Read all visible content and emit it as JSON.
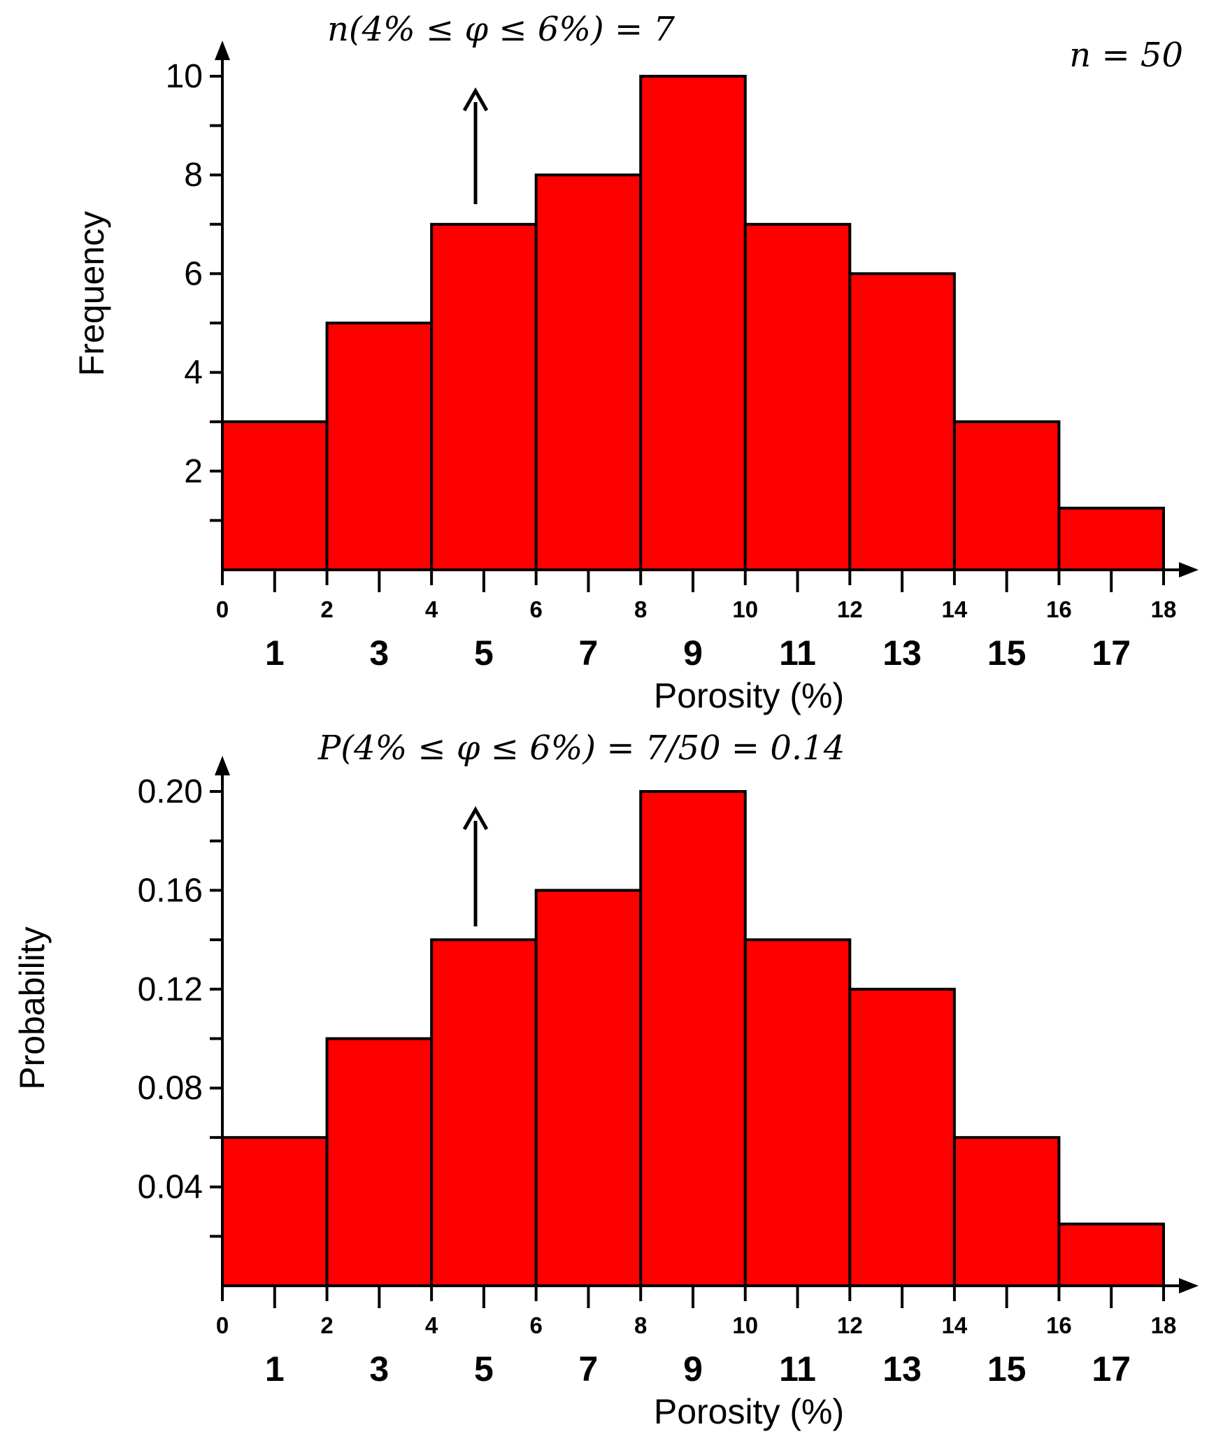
{
  "chart_data": [
    {
      "type": "bar",
      "bin_edges": [
        0,
        2,
        4,
        6,
        8,
        10,
        12,
        14,
        16,
        18
      ],
      "categories": [
        "1",
        "3",
        "5",
        "7",
        "9",
        "11",
        "13",
        "15",
        "17"
      ],
      "values": [
        3,
        5,
        7,
        8,
        10,
        7,
        6,
        3,
        1.25
      ],
      "xlabel": "Porosity (%)",
      "ylabel": "Frequency",
      "ylim": [
        0,
        11
      ],
      "yticks": [
        "2",
        "4",
        "6",
        "8",
        "10"
      ],
      "xticks": [
        "0",
        "2",
        "4",
        "6",
        "8",
        "10",
        "12",
        "14",
        "16",
        "18"
      ],
      "annotation": "n(4% ≤ φ ≤ 6%) = 7",
      "note": "n = 50"
    },
    {
      "type": "bar",
      "bin_edges": [
        0,
        2,
        4,
        6,
        8,
        10,
        12,
        14,
        16,
        18
      ],
      "categories": [
        "1",
        "3",
        "5",
        "7",
        "9",
        "11",
        "13",
        "15",
        "17"
      ],
      "values": [
        0.06,
        0.1,
        0.14,
        0.16,
        0.2,
        0.14,
        0.12,
        0.06,
        0.025
      ],
      "xlabel": "Porosity (%)",
      "ylabel": "Probability",
      "ylim": [
        0,
        0.22
      ],
      "yticks": [
        "0.04",
        "0.08",
        "0.12",
        "0.16",
        "0.20"
      ],
      "xticks": [
        "0",
        "2",
        "4",
        "6",
        "8",
        "10",
        "12",
        "14",
        "16",
        "18"
      ],
      "annotation": "P(4% ≤ φ ≤ 6%) = 7/50 =  0.14"
    }
  ]
}
